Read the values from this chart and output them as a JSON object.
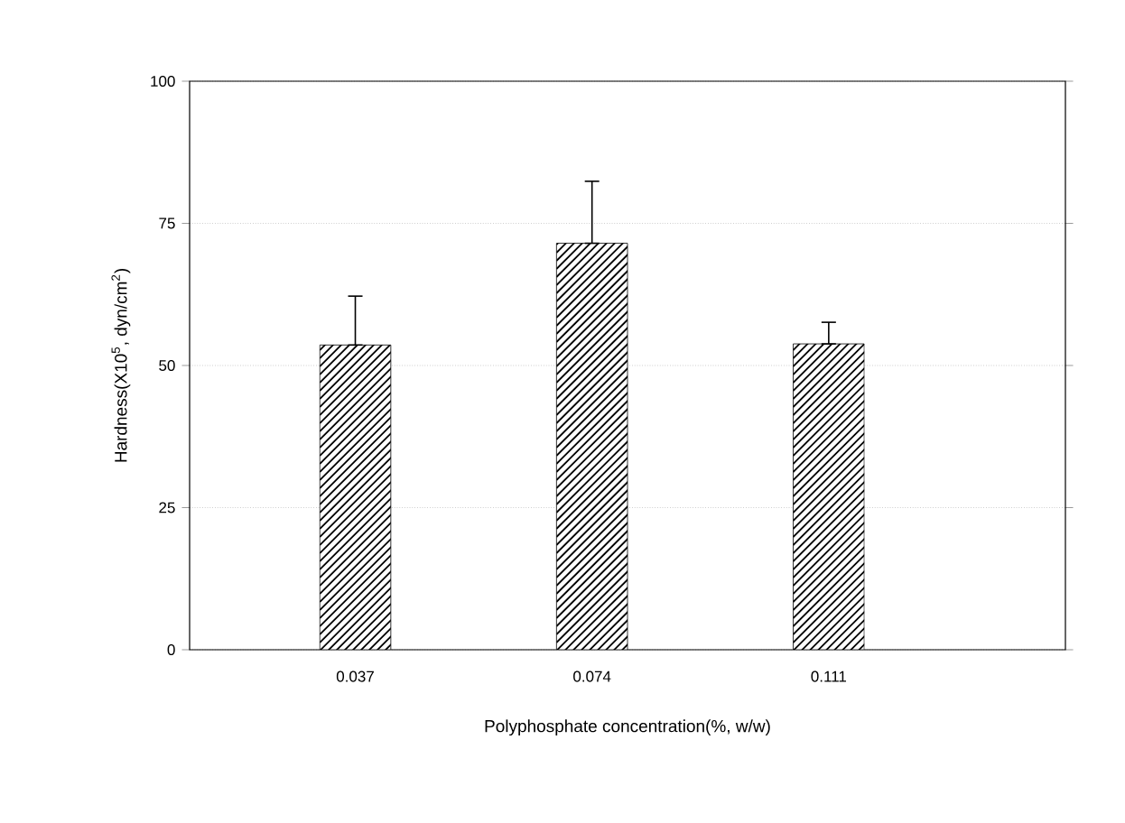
{
  "chart_data": {
    "type": "bar",
    "xlabel": "Polyphosphate concentration(%, w/w)",
    "ylabel": "Hardness(X10$^{5}$, dyn/cm$^{2}$)",
    "categories": [
      "0.037",
      "0.074",
      "0.111"
    ],
    "values": [
      53.6,
      71.5,
      53.8
    ],
    "errors": [
      [
        53.6,
        62.2
      ],
      [
        71.5,
        82.4
      ],
      [
        53.8,
        57.6
      ]
    ],
    "color": "#000000",
    "ylim": [
      0,
      100
    ],
    "yticks": [
      0,
      25,
      50,
      75,
      100
    ],
    "grid": "y"
  }
}
